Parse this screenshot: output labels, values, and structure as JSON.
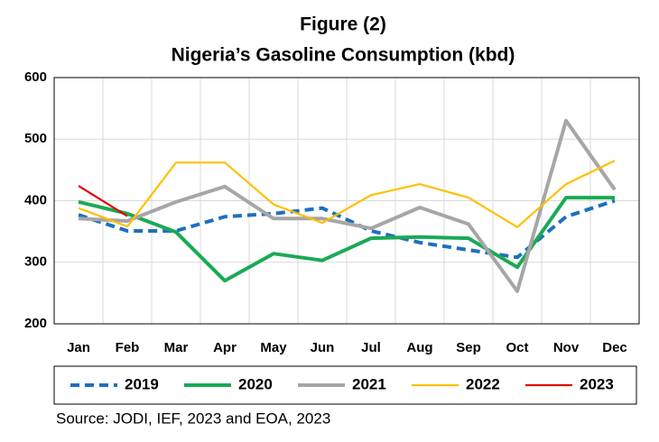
{
  "chart_data": {
    "type": "line",
    "title": "Figure (2)",
    "subtitle": "Nigeria’s Gasoline Consumption (kbd)",
    "source": "Source: JODI, IEF, 2023 and EOA, 2023",
    "categories": [
      "Jan",
      "Feb",
      "Mar",
      "Apr",
      "May",
      "Jun",
      "Jul",
      "Aug",
      "Sep",
      "Oct",
      "Nov",
      "Dec"
    ],
    "series": [
      {
        "name": "2019",
        "color": "#1f6fbf",
        "style": "dashed",
        "values": [
          377,
          351,
          351,
          374,
          379,
          388,
          351,
          332,
          320,
          308,
          374,
          400
        ]
      },
      {
        "name": "2020",
        "color": "#1aaa55",
        "values": [
          398,
          379,
          349,
          270,
          314,
          303,
          339,
          341,
          339,
          292,
          405,
          405
        ]
      },
      {
        "name": "2021",
        "color": "#a6a6a6",
        "values": [
          371,
          367,
          398,
          423,
          371,
          371,
          355,
          389,
          362,
          253,
          530,
          418
        ]
      },
      {
        "name": "2022",
        "color": "#ffc000",
        "values": [
          388,
          358,
          462,
          462,
          394,
          364,
          409,
          427,
          405,
          357,
          427,
          465
        ]
      },
      {
        "name": "2023",
        "color": "#e00000",
        "values": [
          424,
          375,
          null,
          null,
          null,
          null,
          null,
          null,
          null,
          null,
          null,
          null
        ]
      }
    ],
    "ylim": [
      200,
      600
    ],
    "yticks": [
      200,
      300,
      400,
      500,
      600
    ],
    "grid": true
  }
}
